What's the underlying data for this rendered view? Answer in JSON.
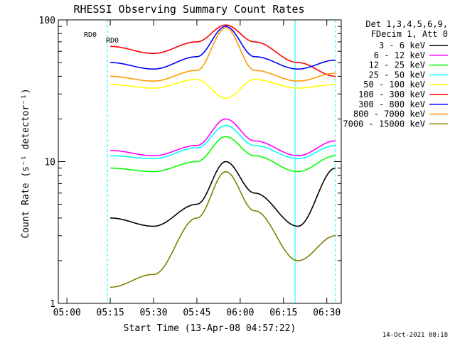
{
  "chart_data": {
    "type": "line",
    "title": "RHESSI Observing Summary Count Rates",
    "xlabel": "Start Time (13-Apr-08 04:57:22)",
    "ylabel": "Count Rate (s⁻¹ detector⁻¹)",
    "xlim": [
      "04:57",
      "06:35"
    ],
    "ylim": [
      1,
      100
    ],
    "yscale": "log",
    "x_ticks": [
      "05:00",
      "05:15",
      "05:30",
      "05:45",
      "06:00",
      "06:15",
      "06:30"
    ],
    "y_ticks": [
      "1",
      "10",
      "100"
    ],
    "legend_header": [
      "Det 1,3,4,5,6,9,",
      "FDecim 1, Att 0"
    ],
    "legend_position": "right",
    "timestamp": "14-Oct-2021 08:18",
    "annotations": [
      "RD0",
      "RD0"
    ],
    "orbit_markers": [
      {
        "type": "saa",
        "color": "#00ffff",
        "times": [
          "04:57",
          "06:19"
        ]
      },
      {
        "type": "night",
        "color": "#00ffff",
        "dashed": true,
        "times": [
          "05:14",
          "06:33"
        ]
      }
    ],
    "series": [
      {
        "name": "3 - 6 keV",
        "color": "#000000",
        "x": [
          "05:15",
          "05:30",
          "05:45",
          "05:55",
          "06:05",
          "06:20",
          "06:33"
        ],
        "values": [
          4.0,
          3.5,
          5.0,
          10.0,
          6.0,
          3.5,
          9.0
        ]
      },
      {
        "name": "6 - 12 keV",
        "color": "#ff00ff",
        "x": [
          "05:15",
          "05:30",
          "05:45",
          "05:55",
          "06:05",
          "06:20",
          "06:33"
        ],
        "values": [
          12.0,
          11.0,
          13.0,
          20.0,
          14.0,
          11.0,
          14.0
        ]
      },
      {
        "name": "12 - 25 keV",
        "color": "#00ff00",
        "x": [
          "05:15",
          "05:30",
          "05:45",
          "05:55",
          "06:05",
          "06:20",
          "06:33"
        ],
        "values": [
          9.0,
          8.5,
          10.0,
          15.0,
          11.0,
          8.5,
          11.0
        ]
      },
      {
        "name": "25 - 50 keV",
        "color": "#00ffff",
        "x": [
          "05:15",
          "05:30",
          "05:45",
          "05:55",
          "06:05",
          "06:20",
          "06:33"
        ],
        "values": [
          11.0,
          10.5,
          12.5,
          18.0,
          13.0,
          10.5,
          13.0
        ]
      },
      {
        "name": "50 - 100 keV",
        "color": "#ffff00",
        "x": [
          "05:15",
          "05:30",
          "05:45",
          "05:55",
          "06:05",
          "06:20",
          "06:33"
        ],
        "values": [
          35.0,
          33.0,
          38.0,
          28.0,
          38.0,
          33.0,
          35.0
        ]
      },
      {
        "name": "100 - 300 keV",
        "color": "#ff0000",
        "x": [
          "05:15",
          "05:30",
          "05:45",
          "05:55",
          "06:05",
          "06:20",
          "06:33"
        ],
        "values": [
          65.0,
          58.0,
          70.0,
          92.0,
          70.0,
          50.0,
          40.0
        ]
      },
      {
        "name": "300 - 800 keV",
        "color": "#0000ff",
        "x": [
          "05:15",
          "05:30",
          "05:45",
          "05:55",
          "06:05",
          "06:20",
          "06:33"
        ],
        "values": [
          50.0,
          45.0,
          55.0,
          90.0,
          55.0,
          45.0,
          52.0
        ]
      },
      {
        "name": "800 - 7000 keV",
        "color": "#ff9900",
        "x": [
          "05:15",
          "05:30",
          "05:45",
          "05:55",
          "06:05",
          "06:20",
          "06:33"
        ],
        "values": [
          40.0,
          37.0,
          44.0,
          88.0,
          44.0,
          37.0,
          42.0
        ]
      },
      {
        "name": "7000 - 15000 keV",
        "color": "#808000",
        "x": [
          "05:15",
          "05:30",
          "05:45",
          "05:55",
          "06:05",
          "06:20",
          "06:33"
        ],
        "values": [
          1.3,
          1.6,
          4.0,
          8.5,
          4.5,
          2.0,
          3.0
        ]
      }
    ]
  }
}
